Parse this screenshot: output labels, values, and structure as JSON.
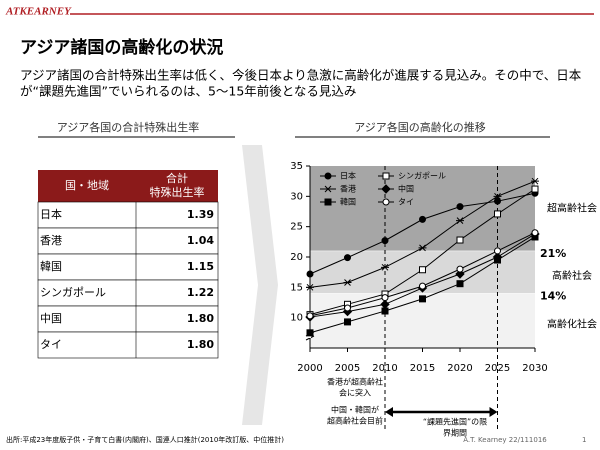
{
  "header": {
    "logo": "ATKEARNEY",
    "title": "アジア諸国の高齢化の状況",
    "subtitle_lines": [
      "アジア諸国の合計特殊出生率は低く、今後日本より急激に高齢化が進展する見込み。その中で、日本",
      "が“課題先進国”でいられるのは、5～15年前後となる見込み"
    ]
  },
  "table": {
    "heading": "アジア各国の合計特殊出生率",
    "columns": [
      "国・地域",
      [
        "合計",
        "特殊出生率"
      ]
    ],
    "rows": [
      [
        "日本",
        "1.39"
      ],
      [
        "香港",
        "1.04"
      ],
      [
        "韓国",
        "1.15"
      ],
      [
        "シンガポール",
        "1.22"
      ],
      [
        "中国",
        "1.80"
      ],
      [
        "タイ",
        "1.80"
      ]
    ]
  },
  "chart_data": {
    "type": "line",
    "title": "アジア各国の高齢化の推移",
    "x": [
      2000,
      2005,
      2010,
      2015,
      2020,
      2025,
      2030
    ],
    "xlim": [
      2000,
      2030
    ],
    "xticks": [
      2000,
      2005,
      2010,
      2015,
      2020,
      2025,
      2030
    ],
    "ylim": [
      5,
      35
    ],
    "yticks": [
      10,
      15,
      20,
      25,
      30,
      35
    ],
    "series": [
      {
        "name": "日本",
        "color": "#000000",
        "marker": "circle-filled",
        "values": [
          17.2,
          19.9,
          22.7,
          26.2,
          28.3,
          29.2,
          30.5
        ]
      },
      {
        "name": "シンガポール",
        "color": "#000000",
        "marker": "square-open",
        "values": [
          10.5,
          12.2,
          13.9,
          17.9,
          22.8,
          27.1,
          31.2
        ]
      },
      {
        "name": "香港",
        "color": "#000000",
        "marker": "asterisk",
        "values": [
          15.0,
          15.8,
          18.3,
          21.5,
          26.0,
          30.0,
          32.5
        ]
      },
      {
        "name": "中国",
        "color": "#000000",
        "marker": "diamond-filled",
        "values": [
          10.1,
          11.0,
          12.2,
          14.9,
          17.2,
          20.0,
          23.8
        ]
      },
      {
        "name": "韓国",
        "color": "#000000",
        "marker": "square-filled",
        "values": [
          7.5,
          9.3,
          11.1,
          13.1,
          15.6,
          19.5,
          23.3
        ]
      },
      {
        "name": "タイ",
        "color": "#000000",
        "marker": "circle-open",
        "values": [
          10.3,
          11.6,
          13.3,
          15.2,
          18.0,
          21.0,
          24.0
        ]
      }
    ],
    "thresholds": [
      {
        "value": 21,
        "label": "21%"
      },
      {
        "value": 14,
        "label": "14%"
      }
    ],
    "bands": [
      {
        "label": "超高齢社会",
        "color": "#a6a6a6"
      },
      {
        "label": "高齢社会",
        "color": "#d9d9d9"
      },
      {
        "label": "高齢化社会",
        "color": "#f2f2f2"
      }
    ],
    "vlines": [
      2010,
      2025
    ],
    "annotations": [
      [
        "香港が超高齢社",
        "会に突入"
      ],
      [
        "中国・韓国が",
        "超高齢社会目前"
      ],
      [
        "“課題先進国”の限",
        "界期間"
      ]
    ]
  },
  "footer": {
    "source": "出所:平成23年度版子供・子育て白書(内閣府)、国連人口推計(2010年改訂版、中位推計)",
    "credit": "A.T. Kearney 22/111016",
    "page": "1"
  }
}
